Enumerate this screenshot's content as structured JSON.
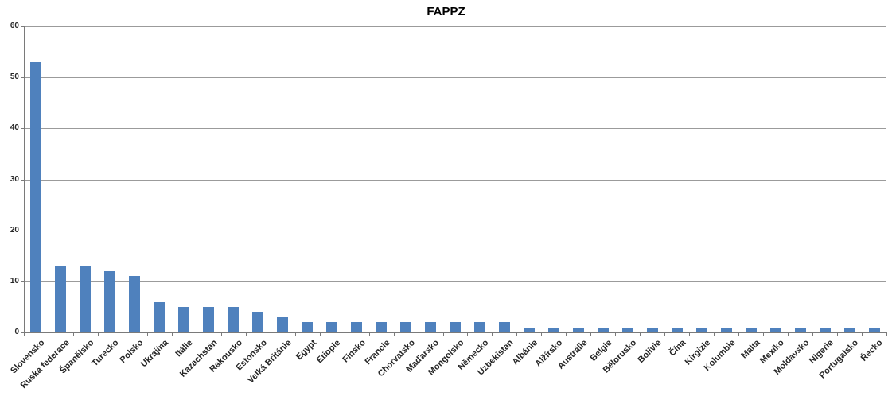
{
  "chart_data": {
    "type": "bar",
    "title": "FAPPZ",
    "xlabel": "",
    "ylabel": "",
    "categories": [
      "Slovensko",
      "Ruská federace",
      "Španělsko",
      "Turecko",
      "Polsko",
      "Ukrajina",
      "Itálie",
      "Kazachstán",
      "Rakousko",
      "Estonsko",
      "Velká Británie",
      "Egypt",
      "Etiopie",
      "Finsko",
      "Francie",
      "Chorvatsko",
      "Maďarsko",
      "Mongolsko",
      "Německo",
      "Uzbekistán",
      "Albánie",
      "Alžírsko",
      "Austrálie",
      "Belgie",
      "Bělorusko",
      "Bolivie",
      "Čína",
      "Kirgizie",
      "Kolumbie",
      "Malta",
      "Mexiko",
      "Moldavsko",
      "Nigerie",
      "Portugalsko",
      "Řecko"
    ],
    "values": [
      53,
      13,
      13,
      12,
      11,
      6,
      5,
      5,
      5,
      4,
      3,
      2,
      2,
      2,
      2,
      2,
      2,
      2,
      2,
      2,
      1,
      1,
      1,
      1,
      1,
      1,
      1,
      1,
      1,
      1,
      1,
      1,
      1,
      1,
      1
    ],
    "ylim": [
      0,
      60
    ],
    "yticks": [
      0,
      10,
      20,
      30,
      40,
      50,
      60
    ],
    "grid": true,
    "legend": false,
    "colors": {
      "bar": "#4f81bd",
      "gridline": "#9b9b9b",
      "axis": "#7a7a7a",
      "tick_label": "#262626",
      "title": "#000000",
      "background": "#ffffff"
    }
  }
}
